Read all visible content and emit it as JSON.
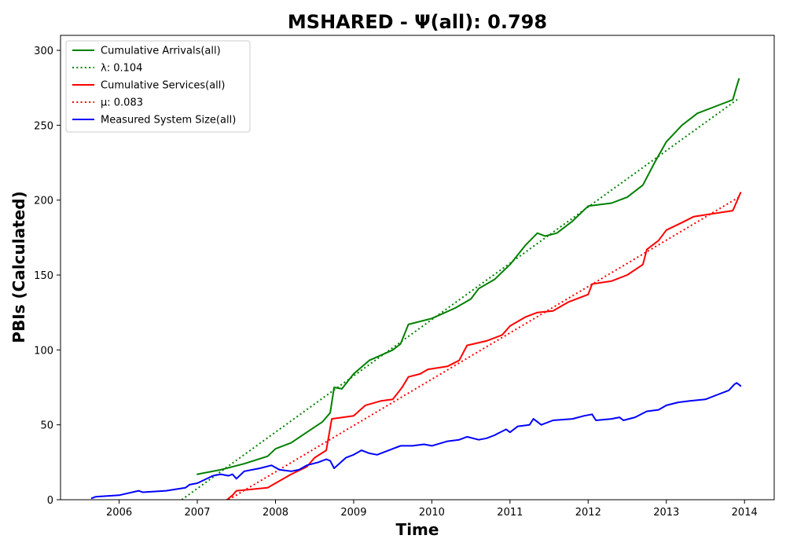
{
  "chart_data": {
    "type": "line",
    "title": "MSHARED -  Ψ(all): 0.798",
    "xlabel": "Time",
    "ylabel": "PBIs (Calculated)",
    "xlim": [
      2005.25,
      2014.38
    ],
    "ylim": [
      0,
      310
    ],
    "x_ticks": [
      2006,
      2007,
      2008,
      2009,
      2010,
      2011,
      2012,
      2013,
      2014
    ],
    "y_ticks": [
      0,
      50,
      100,
      150,
      200,
      250,
      300
    ],
    "grid": false,
    "legend_position": "top-left",
    "series": [
      {
        "name": "Cumulative Arrivals(all)",
        "color": "#008000",
        "style": "solid",
        "points": [
          [
            2007.0,
            17
          ],
          [
            2007.3,
            20
          ],
          [
            2007.6,
            24
          ],
          [
            2007.9,
            29
          ],
          [
            2008.0,
            34
          ],
          [
            2008.2,
            38
          ],
          [
            2008.4,
            45
          ],
          [
            2008.6,
            52
          ],
          [
            2008.7,
            58
          ],
          [
            2008.75,
            75
          ],
          [
            2008.85,
            74
          ],
          [
            2009.0,
            84
          ],
          [
            2009.2,
            93
          ],
          [
            2009.5,
            100
          ],
          [
            2009.6,
            104
          ],
          [
            2009.7,
            117
          ],
          [
            2010.0,
            121
          ],
          [
            2010.3,
            128
          ],
          [
            2010.5,
            134
          ],
          [
            2010.6,
            141
          ],
          [
            2010.8,
            147
          ],
          [
            2011.0,
            157
          ],
          [
            2011.2,
            170
          ],
          [
            2011.35,
            178
          ],
          [
            2011.45,
            176
          ],
          [
            2011.6,
            178
          ],
          [
            2011.8,
            186
          ],
          [
            2012.0,
            196
          ],
          [
            2012.3,
            198
          ],
          [
            2012.5,
            202
          ],
          [
            2012.7,
            210
          ],
          [
            2012.85,
            225
          ],
          [
            2013.0,
            239
          ],
          [
            2013.2,
            250
          ],
          [
            2013.4,
            258
          ],
          [
            2013.6,
            262
          ],
          [
            2013.85,
            267
          ],
          [
            2013.9,
            276
          ],
          [
            2013.93,
            281
          ]
        ]
      },
      {
        "name": "λ: 0.104",
        "color": "#008000",
        "style": "dotted",
        "points": [
          [
            2006.8,
            0
          ],
          [
            2013.93,
            268
          ]
        ]
      },
      {
        "name": "Cumulative Services(all)",
        "color": "#ff0000",
        "style": "solid",
        "points": [
          [
            2007.38,
            0
          ],
          [
            2007.45,
            3
          ],
          [
            2007.5,
            6
          ],
          [
            2007.9,
            8
          ],
          [
            2008.2,
            17
          ],
          [
            2008.4,
            22
          ],
          [
            2008.5,
            28
          ],
          [
            2008.65,
            33
          ],
          [
            2008.72,
            54
          ],
          [
            2009.0,
            56
          ],
          [
            2009.15,
            63
          ],
          [
            2009.35,
            66
          ],
          [
            2009.5,
            67
          ],
          [
            2009.62,
            75
          ],
          [
            2009.7,
            82
          ],
          [
            2009.85,
            84
          ],
          [
            2009.95,
            87
          ],
          [
            2010.2,
            89
          ],
          [
            2010.35,
            93
          ],
          [
            2010.45,
            103
          ],
          [
            2010.7,
            106
          ],
          [
            2010.9,
            110
          ],
          [
            2011.0,
            116
          ],
          [
            2011.2,
            122
          ],
          [
            2011.35,
            125
          ],
          [
            2011.55,
            126
          ],
          [
            2011.75,
            132
          ],
          [
            2012.0,
            137
          ],
          [
            2012.05,
            144
          ],
          [
            2012.3,
            146
          ],
          [
            2012.5,
            150
          ],
          [
            2012.7,
            157
          ],
          [
            2012.75,
            167
          ],
          [
            2012.9,
            173
          ],
          [
            2013.0,
            180
          ],
          [
            2013.2,
            185
          ],
          [
            2013.35,
            189
          ],
          [
            2013.6,
            191
          ],
          [
            2013.85,
            193
          ],
          [
            2013.9,
            199
          ],
          [
            2013.95,
            205
          ]
        ]
      },
      {
        "name": "μ: 0.083",
        "color": "#ff0000",
        "style": "dotted",
        "points": [
          [
            2007.4,
            0
          ],
          [
            2013.93,
            202
          ]
        ]
      },
      {
        "name": "Measured System Size(all)",
        "color": "#0000ff",
        "style": "solid",
        "points": [
          [
            2005.65,
            1
          ],
          [
            2005.7,
            2
          ],
          [
            2006.0,
            3
          ],
          [
            2006.25,
            6
          ],
          [
            2006.3,
            5
          ],
          [
            2006.6,
            6
          ],
          [
            2006.85,
            8
          ],
          [
            2006.9,
            10
          ],
          [
            2007.0,
            11
          ],
          [
            2007.2,
            16
          ],
          [
            2007.3,
            17
          ],
          [
            2007.4,
            16
          ],
          [
            2007.45,
            17
          ],
          [
            2007.5,
            14
          ],
          [
            2007.6,
            19
          ],
          [
            2007.8,
            21
          ],
          [
            2007.95,
            23
          ],
          [
            2008.05,
            20
          ],
          [
            2008.2,
            19
          ],
          [
            2008.3,
            20
          ],
          [
            2008.4,
            23
          ],
          [
            2008.55,
            25
          ],
          [
            2008.65,
            27
          ],
          [
            2008.7,
            26
          ],
          [
            2008.75,
            21
          ],
          [
            2008.9,
            28
          ],
          [
            2009.0,
            30
          ],
          [
            2009.1,
            33
          ],
          [
            2009.2,
            31
          ],
          [
            2009.3,
            30
          ],
          [
            2009.5,
            34
          ],
          [
            2009.6,
            36
          ],
          [
            2009.75,
            36
          ],
          [
            2009.9,
            37
          ],
          [
            2010.0,
            36
          ],
          [
            2010.2,
            39
          ],
          [
            2010.35,
            40
          ],
          [
            2010.45,
            42
          ],
          [
            2010.6,
            40
          ],
          [
            2010.7,
            41
          ],
          [
            2010.8,
            43
          ],
          [
            2010.95,
            47
          ],
          [
            2011.0,
            45
          ],
          [
            2011.1,
            49
          ],
          [
            2011.25,
            50
          ],
          [
            2011.3,
            54
          ],
          [
            2011.4,
            50
          ],
          [
            2011.55,
            53
          ],
          [
            2011.8,
            54
          ],
          [
            2011.95,
            56
          ],
          [
            2012.05,
            57
          ],
          [
            2012.1,
            53
          ],
          [
            2012.3,
            54
          ],
          [
            2012.4,
            55
          ],
          [
            2012.45,
            53
          ],
          [
            2012.6,
            55
          ],
          [
            2012.75,
            59
          ],
          [
            2012.9,
            60
          ],
          [
            2013.0,
            63
          ],
          [
            2013.15,
            65
          ],
          [
            2013.3,
            66
          ],
          [
            2013.5,
            67
          ],
          [
            2013.65,
            70
          ],
          [
            2013.8,
            73
          ],
          [
            2013.87,
            77
          ],
          [
            2013.9,
            78
          ],
          [
            2013.95,
            76
          ]
        ]
      }
    ]
  }
}
